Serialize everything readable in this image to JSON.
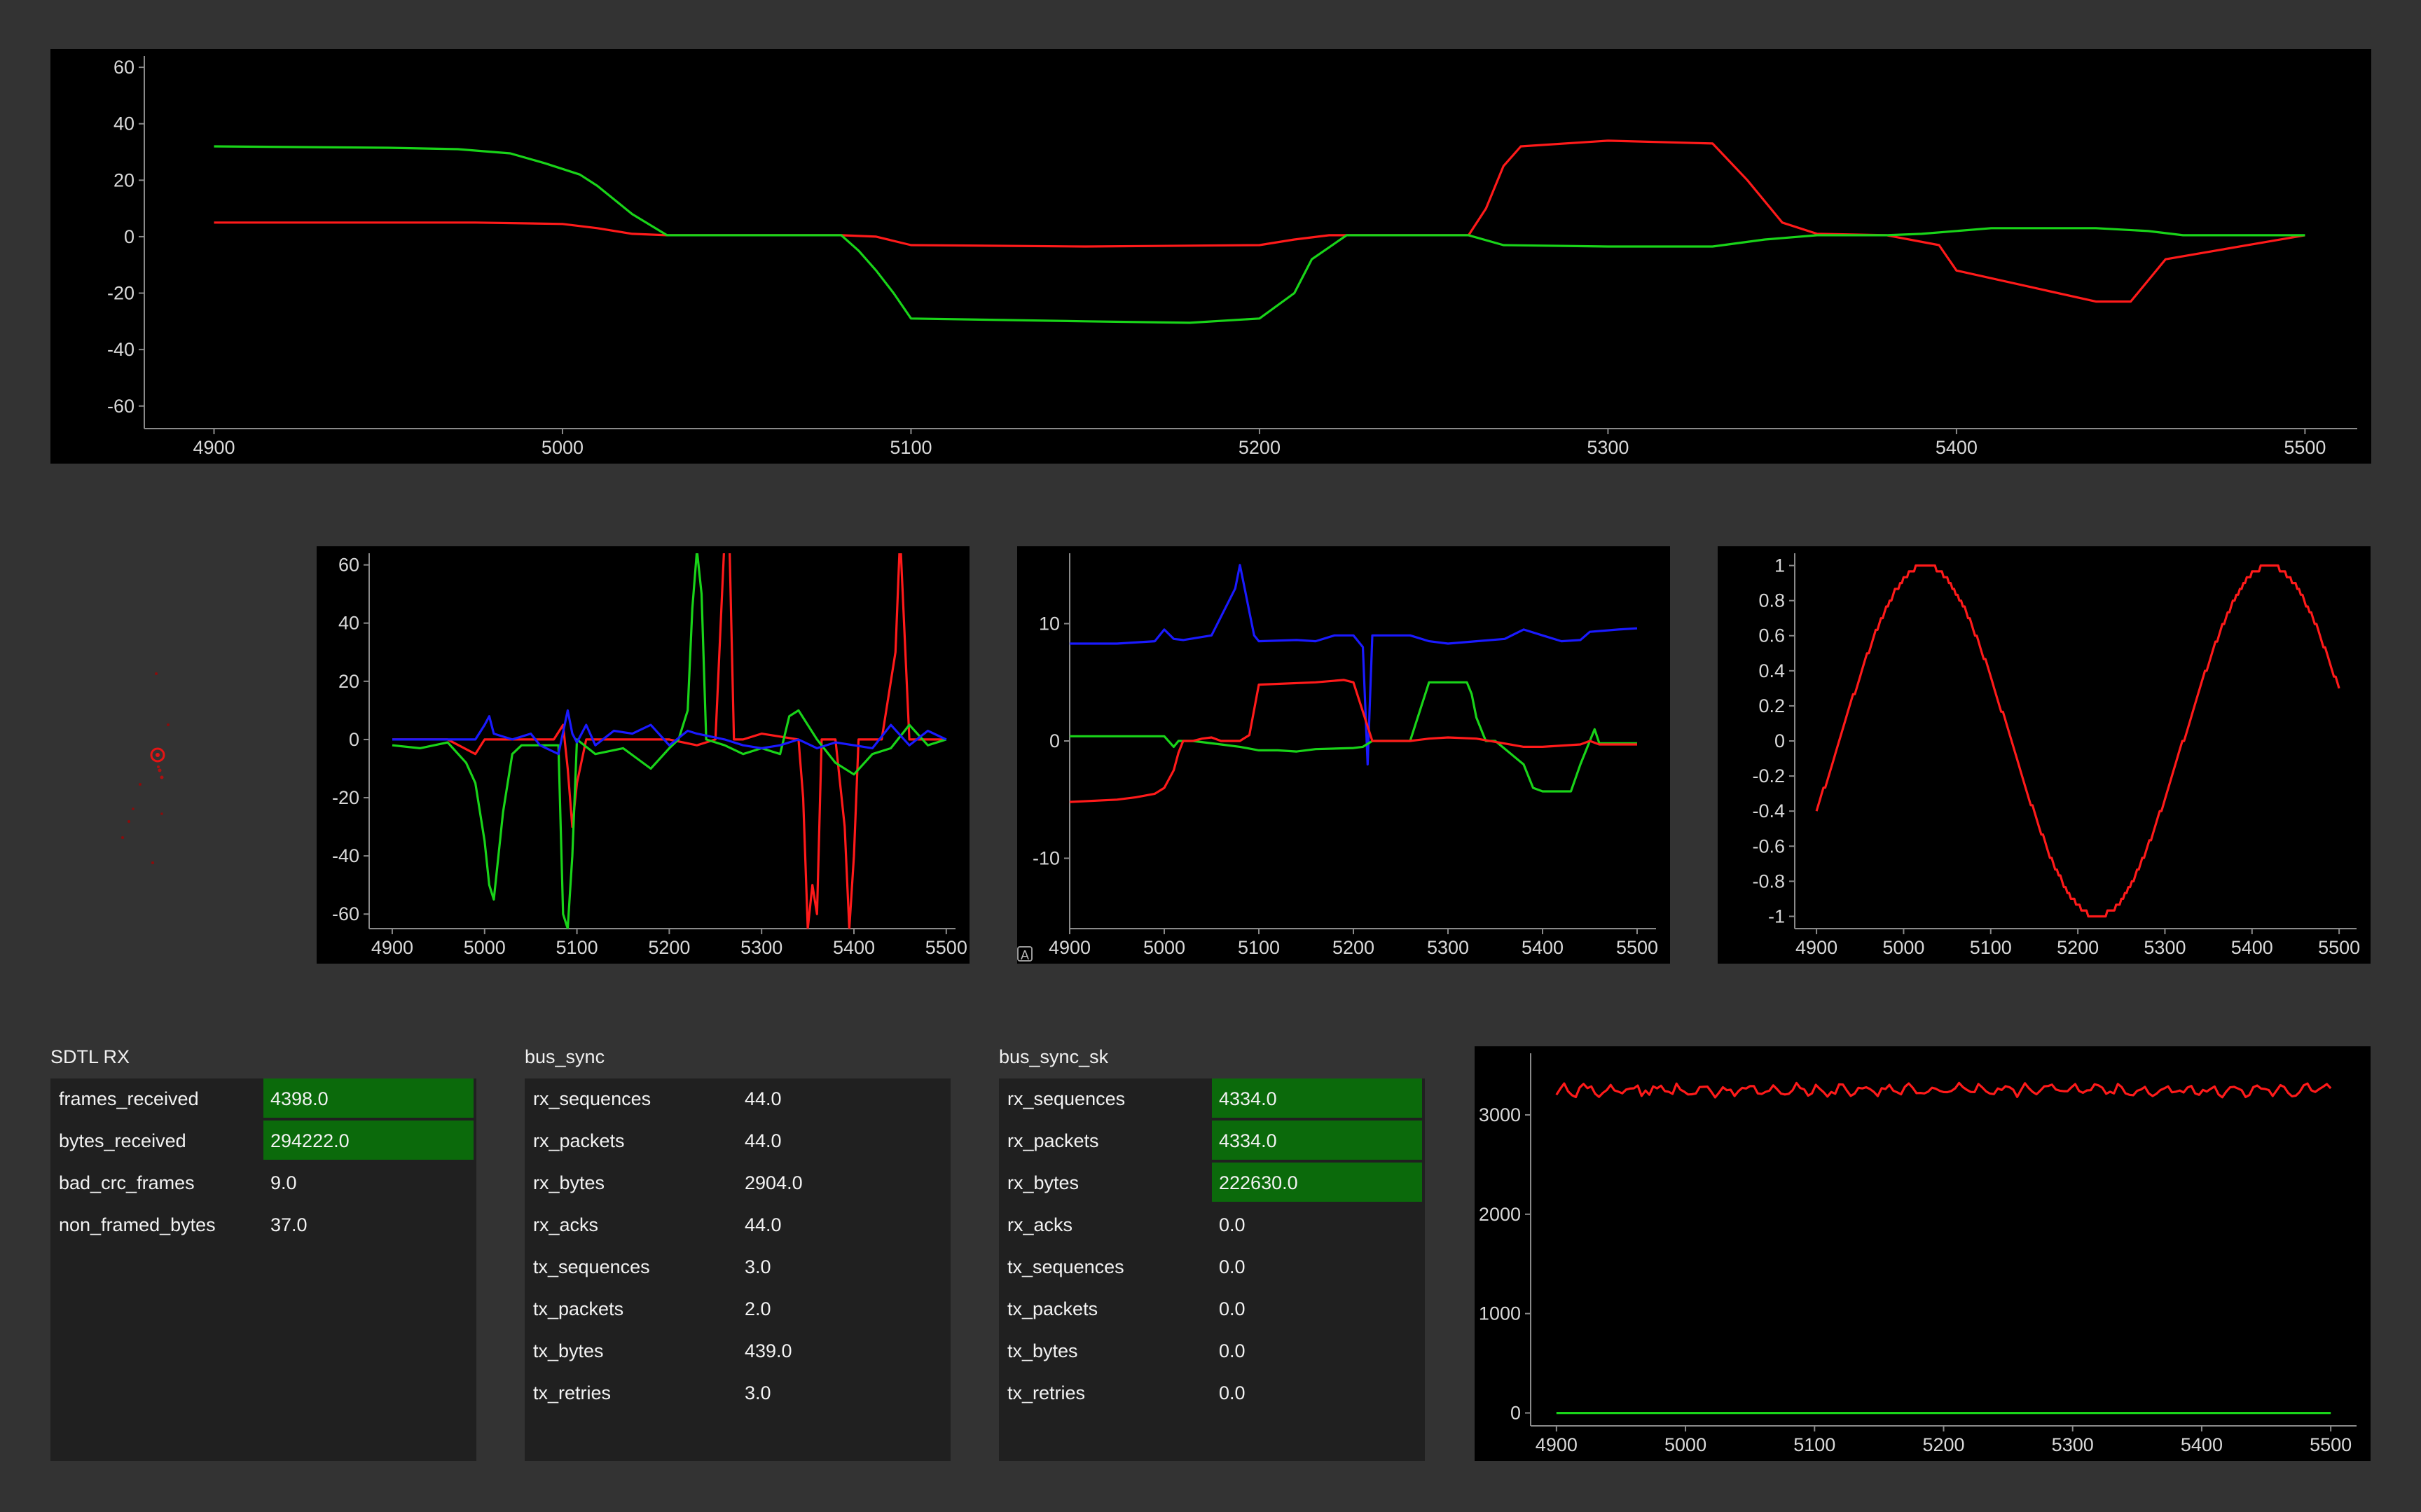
{
  "colors": {
    "background": "#333333",
    "plot_bg": "#000000",
    "red": "#ff1a1a",
    "green": "#19d419",
    "blue": "#1a1aff",
    "highlight": "#0b6a0b",
    "table_bg": "#202020"
  },
  "icons": {
    "auto_scale_button": "A"
  },
  "chart_data": [
    {
      "type": "line",
      "id": "top",
      "xlim": [
        4880,
        5515
      ],
      "ylim": [
        -68,
        64
      ],
      "x_ticks": [
        4900,
        5000,
        5100,
        5200,
        5300,
        5400,
        5500
      ],
      "y_ticks": [
        60,
        40,
        20,
        0,
        -20,
        -40,
        -60
      ],
      "series": [
        {
          "color": "red",
          "x": [
            4900,
            4950,
            4975,
            5000,
            5010,
            5020,
            5030,
            5050,
            5080,
            5090,
            5100,
            5150,
            5200,
            5210,
            5220,
            5260,
            5265,
            5270,
            5275,
            5300,
            5330,
            5340,
            5350,
            5360,
            5380,
            5395,
            5400,
            5440,
            5450,
            5460,
            5500
          ],
          "y": [
            5,
            5,
            5,
            4.5,
            3,
            1,
            0.5,
            0.5,
            0.5,
            0,
            -3,
            -3.5,
            -3,
            -1,
            0.5,
            0.5,
            10,
            25,
            32,
            34,
            33,
            20,
            5,
            1,
            0.5,
            -3,
            -12,
            -23,
            -23,
            -8,
            0.5
          ]
        },
        {
          "color": "green",
          "x": [
            4900,
            4950,
            4970,
            4985,
            4995,
            5005,
            5010,
            5020,
            5030,
            5060,
            5080,
            5085,
            5090,
            5095,
            5100,
            5150,
            5180,
            5200,
            5210,
            5215,
            5225,
            5230,
            5260,
            5270,
            5300,
            5330,
            5345,
            5360,
            5380,
            5390,
            5410,
            5440,
            5455,
            5465,
            5500
          ],
          "y": [
            32,
            31.5,
            31,
            29.5,
            26,
            22,
            18,
            8,
            0.5,
            0.5,
            0.5,
            -5,
            -12,
            -20,
            -29,
            -30,
            -30.5,
            -29,
            -20,
            -8,
            0.5,
            0.5,
            0.5,
            -3,
            -3.5,
            -3.5,
            -1,
            0.5,
            0.5,
            1,
            3,
            3,
            2,
            0.5,
            0.5
          ]
        }
      ]
    },
    {
      "type": "line",
      "id": "mid1",
      "xlim": [
        4875,
        5510
      ],
      "ylim": [
        -65,
        64
      ],
      "x_ticks": [
        4900,
        5000,
        5100,
        5200,
        5300,
        5400,
        5500
      ],
      "y_ticks": [
        60,
        40,
        20,
        0,
        -20,
        -40,
        -60
      ],
      "series": [
        {
          "color": "red",
          "x": [
            4900,
            4960,
            4990,
            5000,
            5030,
            5060,
            5075,
            5085,
            5090,
            5095,
            5100,
            5110,
            5160,
            5200,
            5230,
            5250,
            5260,
            5265,
            5270,
            5280,
            5300,
            5340,
            5345,
            5350,
            5355,
            5360,
            5365,
            5380,
            5390,
            5395,
            5400,
            5405,
            5430,
            5440,
            5445,
            5450,
            5460,
            5500
          ],
          "y": [
            0,
            0,
            -5,
            0,
            0,
            0,
            0,
            5,
            -10,
            -30,
            -15,
            0,
            0,
            0,
            -2,
            0,
            70,
            70,
            0,
            0,
            2,
            0,
            -20,
            -65,
            -50,
            -60,
            0,
            0,
            -30,
            -65,
            -40,
            0,
            0,
            20,
            30,
            70,
            0,
            0
          ]
        },
        {
          "color": "green",
          "x": [
            4900,
            4930,
            4960,
            4980,
            4990,
            5000,
            5005,
            5010,
            5020,
            5030,
            5040,
            5060,
            5080,
            5085,
            5090,
            5095,
            5100,
            5120,
            5150,
            5180,
            5200,
            5210,
            5220,
            5225,
            5230,
            5235,
            5240,
            5260,
            5280,
            5300,
            5320,
            5330,
            5340,
            5350,
            5360,
            5380,
            5400,
            5420,
            5440,
            5460,
            5480,
            5500
          ],
          "y": [
            -2,
            -3,
            -1,
            -8,
            -15,
            -35,
            -50,
            -55,
            -25,
            -5,
            -2,
            -2,
            -2,
            -60,
            -65,
            -40,
            0,
            -5,
            -3,
            -10,
            -3,
            0,
            10,
            45,
            65,
            50,
            0,
            -2,
            -5,
            -3,
            -5,
            8,
            10,
            5,
            0,
            -8,
            -12,
            -5,
            -3,
            5,
            -2,
            0
          ]
        },
        {
          "color": "blue",
          "x": [
            4900,
            4950,
            4990,
            5000,
            5005,
            5010,
            5030,
            5050,
            5060,
            5080,
            5090,
            5095,
            5100,
            5110,
            5120,
            5140,
            5160,
            5180,
            5200,
            5220,
            5230,
            5260,
            5280,
            5300,
            5320,
            5340,
            5360,
            5380,
            5400,
            5420,
            5440,
            5460,
            5480,
            5500
          ],
          "y": [
            0,
            0,
            0,
            5,
            8,
            2,
            0,
            2,
            -2,
            -5,
            10,
            2,
            -1,
            5,
            -2,
            3,
            2,
            5,
            -2,
            3,
            2,
            0,
            -2,
            -3,
            -2,
            0,
            -3,
            -1,
            -2,
            -3,
            5,
            -2,
            3,
            0
          ]
        }
      ]
    },
    {
      "type": "line",
      "id": "mid2",
      "xlim": [
        4900,
        5520
      ],
      "ylim": [
        -16,
        16
      ],
      "x_ticks": [
        4900,
        5000,
        5100,
        5200,
        5300,
        5400,
        5500
      ],
      "y_ticks": [
        10,
        0,
        -10
      ],
      "series": [
        {
          "color": "blue",
          "x": [
            4900,
            4950,
            4990,
            5000,
            5010,
            5020,
            5050,
            5075,
            5080,
            5085,
            5090,
            5095,
            5100,
            5140,
            5160,
            5180,
            5200,
            5210,
            5215,
            5220,
            5230,
            5260,
            5280,
            5300,
            5330,
            5360,
            5380,
            5400,
            5420,
            5440,
            5450,
            5480,
            5500
          ],
          "y": [
            8.3,
            8.3,
            8.5,
            9.5,
            8.7,
            8.6,
            9,
            13,
            15,
            13,
            11,
            9,
            8.5,
            8.6,
            8.5,
            9,
            9,
            8,
            -2,
            9,
            9,
            9,
            8.5,
            8.3,
            8.5,
            8.7,
            9.5,
            9,
            8.5,
            8.6,
            9.3,
            9.5,
            9.6
          ]
        },
        {
          "color": "green",
          "x": [
            4900,
            4950,
            5000,
            5010,
            5015,
            5030,
            5060,
            5080,
            5100,
            5120,
            5140,
            5160,
            5200,
            5210,
            5220,
            5230,
            5260,
            5270,
            5280,
            5320,
            5325,
            5330,
            5340,
            5350,
            5380,
            5390,
            5400,
            5430,
            5440,
            5450,
            5455,
            5460,
            5500
          ],
          "y": [
            0.4,
            0.4,
            0.4,
            -0.5,
            0,
            0,
            -0.3,
            -0.5,
            -0.8,
            -0.8,
            -0.9,
            -0.7,
            -0.6,
            -0.5,
            0,
            0,
            0,
            2.5,
            5,
            5,
            4,
            2,
            0,
            0,
            -2,
            -4,
            -4.3,
            -4.3,
            -2,
            0,
            1,
            -0.2,
            -0.2
          ]
        },
        {
          "color": "red",
          "x": [
            4900,
            4950,
            4970,
            4990,
            5000,
            5010,
            5015,
            5020,
            5030,
            5040,
            5050,
            5060,
            5080,
            5090,
            5100,
            5160,
            5190,
            5200,
            5220,
            5260,
            5280,
            5300,
            5330,
            5380,
            5400,
            5440,
            5450,
            5460,
            5500
          ],
          "y": [
            -5.2,
            -5,
            -4.8,
            -4.5,
            -4,
            -2.5,
            -1,
            0,
            0,
            0.2,
            0.3,
            0,
            0,
            0.5,
            4.8,
            5,
            5.2,
            5,
            0,
            0,
            0.2,
            0.3,
            0.2,
            -0.5,
            -0.5,
            -0.3,
            0,
            -0.3,
            -0.3
          ]
        }
      ]
    },
    {
      "type": "line",
      "id": "mid3",
      "xlim": [
        4875,
        5520
      ],
      "ylim": [
        -1.07,
        1.07
      ],
      "x_ticks": [
        4900,
        5000,
        5100,
        5200,
        5300,
        5400,
        5500
      ],
      "y_ticks": [
        1,
        0.8,
        0.6,
        0.4,
        0.2,
        0,
        -0.2,
        -0.4,
        -0.6,
        -0.8,
        -1
      ],
      "y_tick_labels": [
        "1",
        "0.8",
        "0.6",
        "0.4",
        "0.2",
        "0",
        "-0.2",
        "-0.4",
        "-0.6",
        "-0.8",
        "-1"
      ],
      "series": [
        {
          "color": "red",
          "func": "sine",
          "x_start": 4900,
          "x_end": 5500,
          "period": 395,
          "phase_x": 4926,
          "amp": 1,
          "y_start": -0.45,
          "y_end": 0.5
        }
      ]
    },
    {
      "type": "line",
      "id": "bottom",
      "xlim": [
        4880,
        5520
      ],
      "ylim": [
        -130,
        3620
      ],
      "x_ticks": [
        4900,
        5000,
        5100,
        5200,
        5300,
        5400,
        5500
      ],
      "y_ticks": [
        3000,
        2000,
        1000,
        0
      ],
      "series": [
        {
          "color": "red",
          "noise": true,
          "x": [
            4900,
            5500
          ],
          "y": [
            3250,
            3250
          ],
          "amp": 80
        },
        {
          "color": "green",
          "x": [
            4900,
            5500
          ],
          "y": [
            0,
            0
          ]
        }
      ]
    }
  ],
  "tables": [
    {
      "title": "SDTL RX",
      "rows": [
        {
          "k": "frames_received",
          "v": "4398.0",
          "hl": true
        },
        {
          "k": "bytes_received",
          "v": "294222.0",
          "hl": true
        },
        {
          "k": "bad_crc_frames",
          "v": "9.0",
          "hl": false
        },
        {
          "k": "non_framed_bytes",
          "v": "37.0",
          "hl": false
        }
      ]
    },
    {
      "title": "bus_sync",
      "rows": [
        {
          "k": "rx_sequences",
          "v": "44.0",
          "hl": false
        },
        {
          "k": "rx_packets",
          "v": "44.0",
          "hl": false
        },
        {
          "k": "rx_bytes",
          "v": "2904.0",
          "hl": false
        },
        {
          "k": "rx_acks",
          "v": "44.0",
          "hl": false
        },
        {
          "k": "tx_sequences",
          "v": "3.0",
          "hl": false
        },
        {
          "k": "tx_packets",
          "v": "2.0",
          "hl": false
        },
        {
          "k": "tx_bytes",
          "v": "439.0",
          "hl": false
        },
        {
          "k": "tx_retries",
          "v": "3.0",
          "hl": false
        }
      ]
    },
    {
      "title": "bus_sync_sk",
      "rows": [
        {
          "k": "rx_sequences",
          "v": "4334.0",
          "hl": true
        },
        {
          "k": "rx_packets",
          "v": "4334.0",
          "hl": true
        },
        {
          "k": "rx_bytes",
          "v": "222630.0",
          "hl": true
        },
        {
          "k": "rx_acks",
          "v": "0.0",
          "hl": false
        },
        {
          "k": "tx_sequences",
          "v": "0.0",
          "hl": false
        },
        {
          "k": "tx_packets",
          "v": "0.0",
          "hl": false
        },
        {
          "k": "tx_bytes",
          "v": "0.0",
          "hl": false
        },
        {
          "k": "tx_retries",
          "v": "0.0",
          "hl": false
        }
      ]
    }
  ]
}
